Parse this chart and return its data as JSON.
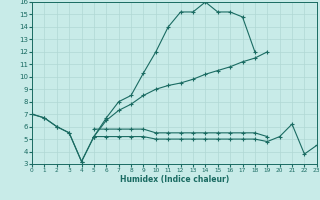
{
  "xlabel": "Humidex (Indice chaleur)",
  "xlim": [
    0,
    23
  ],
  "ylim": [
    3,
    16
  ],
  "yticks": [
    3,
    4,
    5,
    6,
    7,
    8,
    9,
    10,
    11,
    12,
    13,
    14,
    15,
    16
  ],
  "xticks": [
    0,
    1,
    2,
    3,
    4,
    5,
    6,
    7,
    8,
    9,
    10,
    11,
    12,
    13,
    14,
    15,
    16,
    17,
    18,
    19,
    20,
    21,
    22,
    23
  ],
  "bg_color": "#c8ebe8",
  "grid_color": "#b0d8d4",
  "line_color": "#1a6b62",
  "curves": [
    {
      "x": [
        0,
        1,
        2,
        3,
        4,
        5,
        6,
        7,
        8,
        9,
        10,
        11,
        12,
        13,
        14,
        15,
        16,
        17,
        18
      ],
      "y": [
        7.0,
        6.7,
        6.0,
        5.5,
        3.2,
        5.2,
        6.7,
        8.0,
        8.5,
        10.3,
        12.0,
        14.0,
        15.2,
        15.2,
        16.0,
        15.2,
        15.2,
        14.8,
        12.0
      ]
    },
    {
      "x": [
        0,
        1,
        2,
        3,
        4,
        5,
        6,
        7,
        8,
        9,
        10,
        11,
        12,
        13,
        14,
        15,
        16,
        17,
        18,
        19
      ],
      "y": [
        7.0,
        6.7,
        6.0,
        5.5,
        3.2,
        5.2,
        6.5,
        7.3,
        7.8,
        8.5,
        9.0,
        9.3,
        9.5,
        9.8,
        10.2,
        10.5,
        10.8,
        11.2,
        11.5,
        12.0
      ]
    },
    {
      "x": [
        5,
        6,
        7,
        8,
        9,
        10,
        11,
        12,
        13,
        14,
        15,
        16,
        17,
        18,
        19,
        20,
        21,
        22,
        23
      ],
      "y": [
        5.2,
        5.2,
        5.2,
        5.2,
        5.2,
        5.0,
        5.0,
        5.0,
        5.0,
        5.0,
        5.0,
        5.0,
        5.0,
        5.0,
        4.8,
        5.2,
        6.2,
        3.8,
        4.5
      ]
    },
    {
      "x": [
        5,
        6,
        7,
        8,
        9,
        10,
        11,
        12,
        13,
        14,
        15,
        16,
        17,
        18,
        19
      ],
      "y": [
        5.8,
        5.8,
        5.8,
        5.8,
        5.8,
        5.5,
        5.5,
        5.5,
        5.5,
        5.5,
        5.5,
        5.5,
        5.5,
        5.5,
        5.2
      ]
    }
  ]
}
